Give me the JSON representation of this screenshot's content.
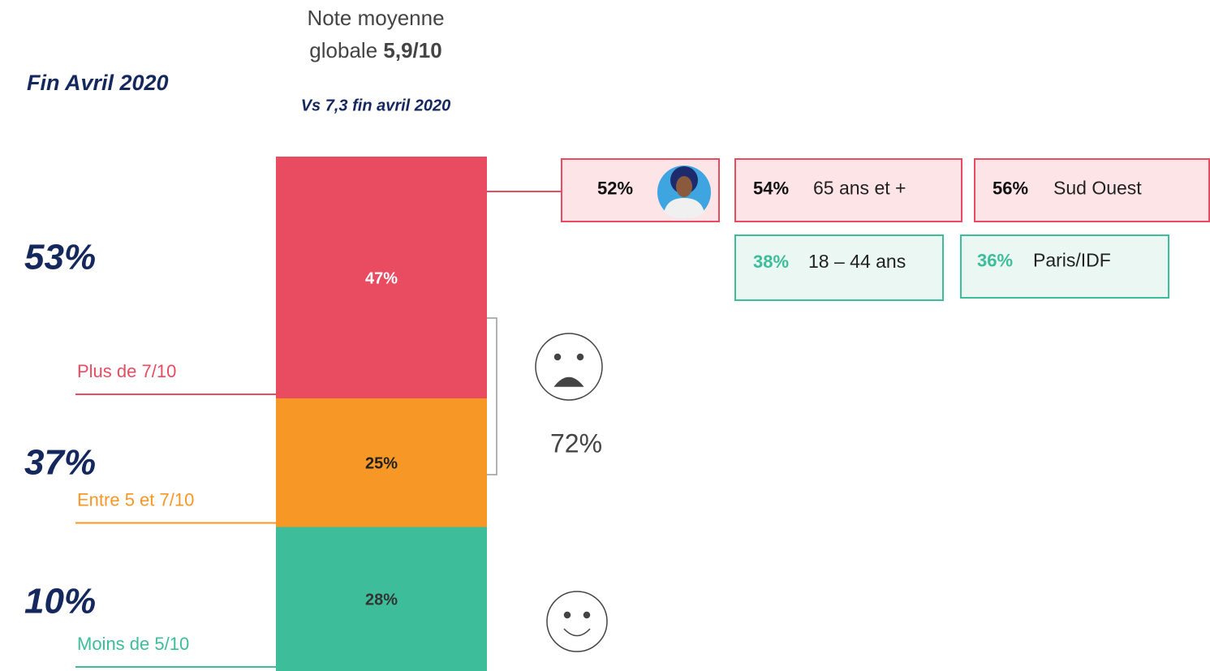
{
  "chart_data": {
    "type": "bar",
    "title_lines": [
      "Note moyenne",
      "globale"
    ],
    "title_score": "5,9/10",
    "period": "Fin Avril 2020",
    "subtitle": "Vs 7,3 fin avril 2020",
    "ylim": [
      0,
      100
    ],
    "series": [
      {
        "name": "Moins de 5/10",
        "color": "#3dbd9a",
        "label_color": "#333333",
        "values": [
          28
        ],
        "value_labels": [
          "28%"
        ],
        "previous_label": "10%"
      },
      {
        "name": "Entre 5 et 7/10",
        "color": "#f79826",
        "label_color": "#222222",
        "values": [
          25
        ],
        "value_labels": [
          "25%"
        ],
        "previous_label": "37%"
      },
      {
        "name": "Plus de 7/10",
        "color": "#e94b60",
        "label_color": "#ffffff",
        "values": [
          47
        ],
        "value_labels": [
          "47%"
        ],
        "previous_label": "53%"
      }
    ],
    "bracket_label": "72%",
    "callouts": [
      {
        "label": "52%",
        "color": "#e94b60"
      },
      {
        "label": "54%",
        "text": "65 ans et +",
        "color": "#e94b60"
      },
      {
        "label": "56%",
        "text": "Sud Ouest",
        "color": "#e94b60"
      },
      {
        "label": "38%",
        "text": "18 – 44 ans",
        "color": "#3dbd9a"
      },
      {
        "label": "36%",
        "text": "Paris/IDF",
        "color": "#3dbd9a"
      }
    ]
  }
}
